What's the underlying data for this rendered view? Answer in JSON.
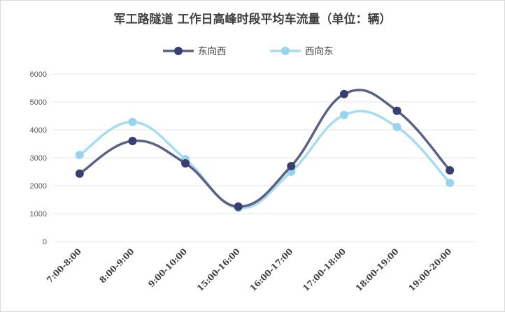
{
  "chart_data": {
    "type": "line",
    "title": "军工路隧道  工作日高峰时段平均车流量（单位：辆）",
    "categories": [
      "7:00-8:00",
      "8:00-9:00",
      "9:00-10:00",
      "15:00-16:00",
      "16:00-17:00",
      "17:00-18:00",
      "18:00-19:00",
      "19:00-20:00"
    ],
    "series": [
      {
        "name": "东向西",
        "color": "#5b6087",
        "marker_color": "#3a3f73",
        "values": [
          2430,
          3600,
          2800,
          1250,
          2700,
          5280,
          4680,
          2550
        ]
      },
      {
        "name": "西向东",
        "color": "#a6dcf1",
        "marker_color": "#99d4ee",
        "values": [
          3100,
          4280,
          2950,
          1200,
          2500,
          4530,
          4100,
          2100
        ]
      }
    ],
    "ylim": [
      0,
      6000
    ],
    "yticks": [
      0,
      1000,
      2000,
      3000,
      4000,
      5000,
      6000
    ],
    "grid": true,
    "legend_position": "top-center",
    "smooth": true
  }
}
